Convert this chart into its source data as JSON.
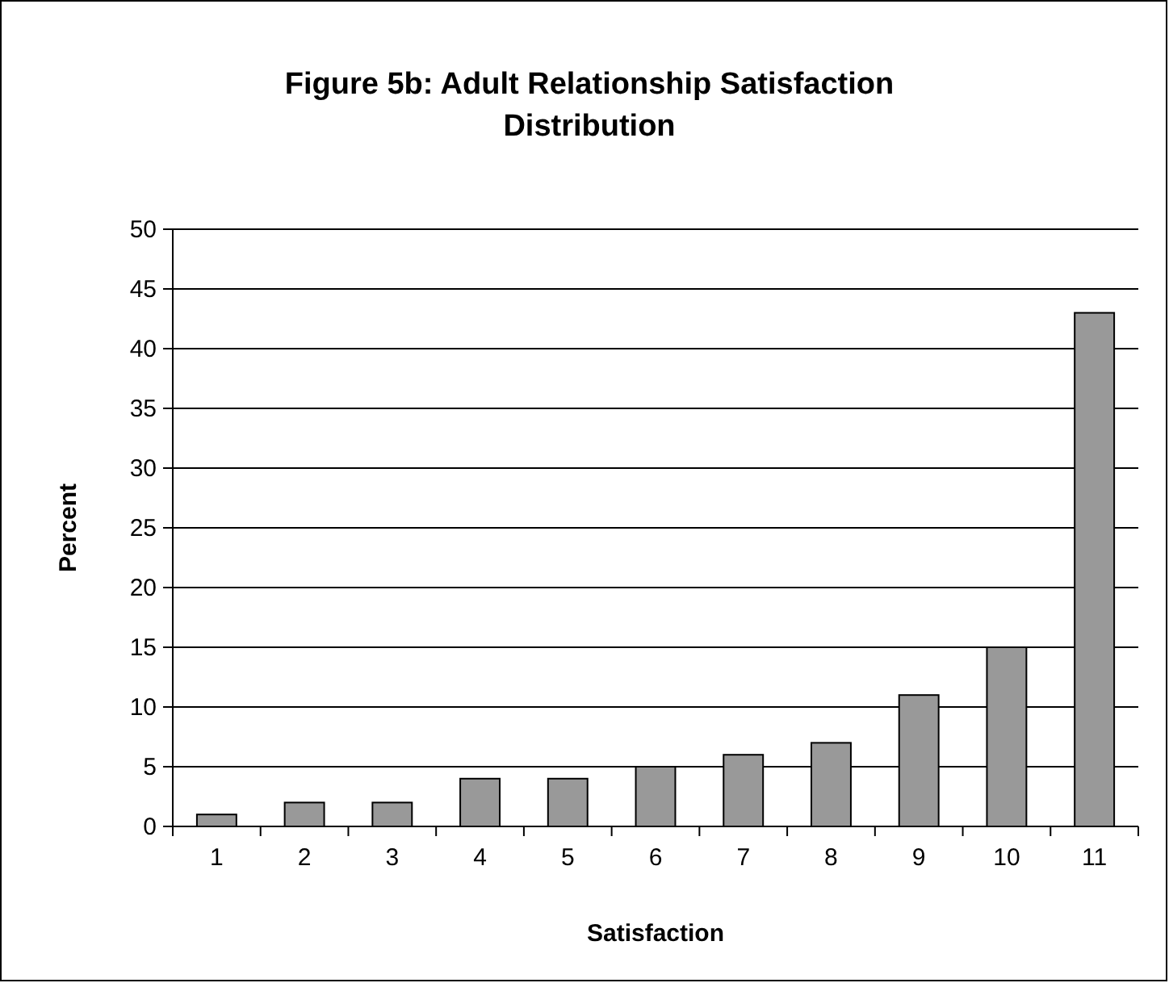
{
  "chart_data": {
    "type": "bar",
    "title": "Figure 5b: Adult Relationship Satisfaction Distribution",
    "xlabel": "Satisfaction",
    "ylabel": "Percent",
    "categories": [
      "1",
      "2",
      "3",
      "4",
      "5",
      "6",
      "7",
      "8",
      "9",
      "10",
      "11"
    ],
    "values": [
      1,
      2,
      2,
      4,
      4,
      5,
      6,
      7,
      11,
      15,
      43
    ],
    "color": "#999999",
    "ylim": [
      0,
      50
    ],
    "yticks": [
      0,
      5,
      10,
      15,
      20,
      25,
      30,
      35,
      40,
      45,
      50
    ],
    "grid": "y"
  }
}
